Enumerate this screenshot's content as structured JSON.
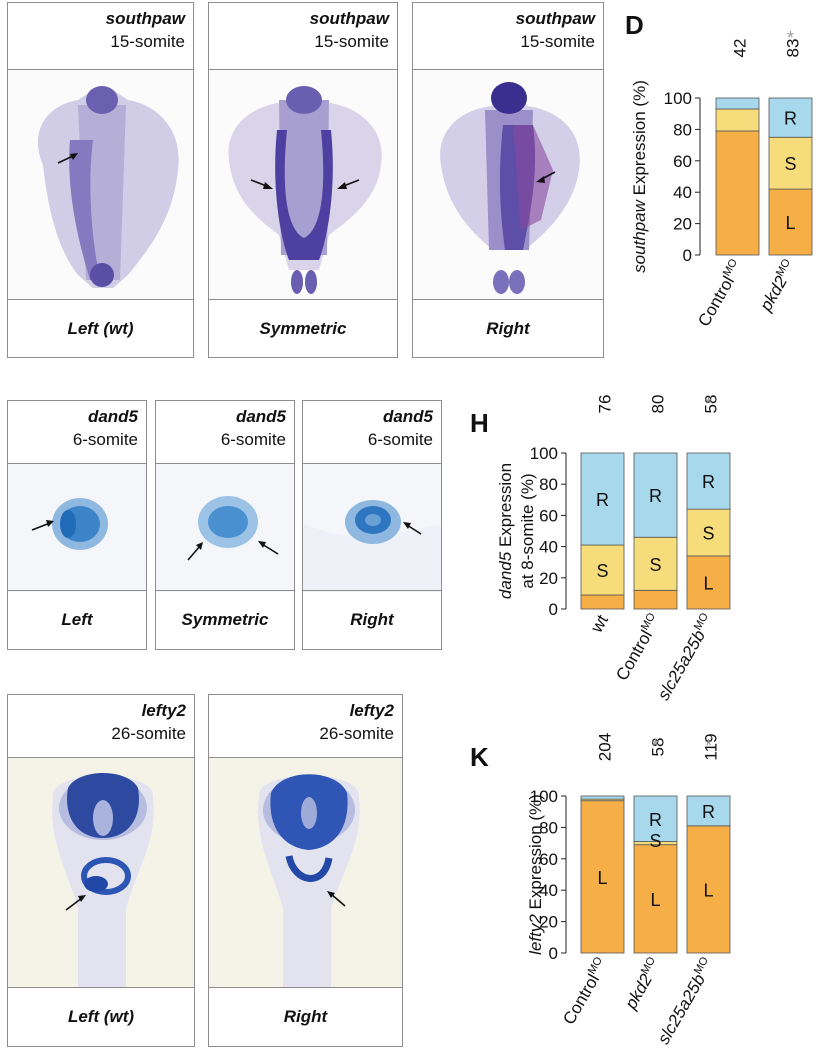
{
  "panels": [
    {
      "id": "A",
      "gene": "southpaw",
      "stage": "15-somite",
      "pattern": "Left (wt)"
    },
    {
      "id": "B",
      "gene": "southpaw",
      "stage": "15-somite",
      "pattern": "Symmetric"
    },
    {
      "id": "C",
      "gene": "southpaw",
      "stage": "15-somite",
      "pattern": "Right"
    },
    {
      "id": "E",
      "gene": "dand5",
      "stage": "6-somite",
      "pattern": "Left"
    },
    {
      "id": "F",
      "gene": "dand5",
      "stage": "6-somite",
      "pattern": "Symmetric"
    },
    {
      "id": "G",
      "gene": "dand5",
      "stage": "6-somite",
      "pattern": "Right"
    },
    {
      "id": "I",
      "gene": "lefty2",
      "stage": "26-somite",
      "pattern": "Left (wt)"
    },
    {
      "id": "J",
      "gene": "lefty2",
      "stage": "26-somite",
      "pattern": "Right"
    }
  ],
  "colors": {
    "L": "#f6ae47",
    "S": "#f6dc7a",
    "R": "#a8d8ec",
    "star": "#999999"
  },
  "chart_data": [
    {
      "id": "D",
      "type": "bar",
      "stacked": true,
      "ylabel_gene": "southpaw",
      "ylabel_rest": " Expression (%)",
      "ylabel_line2": "",
      "ylim": [
        0,
        100
      ],
      "yticks": [
        0,
        20,
        40,
        60,
        80,
        100
      ],
      "categories": [
        {
          "base": "Control",
          "sup": "MO",
          "italic": false
        },
        {
          "base": "pkd2",
          "sup": "MO",
          "italic": true
        }
      ],
      "n": [
        "42",
        "83"
      ],
      "significant": [
        false,
        true
      ],
      "series": [
        {
          "name": "L",
          "values": [
            79,
            42
          ]
        },
        {
          "name": "S",
          "values": [
            14,
            33
          ]
        },
        {
          "name": "R",
          "values": [
            7,
            25
          ]
        }
      ],
      "seg_labels": [
        [
          "",
          "",
          ""
        ],
        [
          "L",
          "S",
          "R"
        ]
      ],
      "overlap_labels": []
    },
    {
      "id": "H",
      "type": "bar",
      "stacked": true,
      "ylabel_gene": "dand5",
      "ylabel_rest": " Expression",
      "ylabel_line2": "at 8-somite (%)",
      "ylim": [
        0,
        100
      ],
      "yticks": [
        0,
        20,
        40,
        60,
        80,
        100
      ],
      "categories": [
        {
          "base": "wt",
          "sup": "",
          "italic": false
        },
        {
          "base": "Control",
          "sup": "MO",
          "italic": false
        },
        {
          "base": "slc25a25b",
          "sup": "MO",
          "italic": true
        }
      ],
      "n": [
        "76",
        "80",
        "58"
      ],
      "significant": [
        false,
        false,
        true
      ],
      "series": [
        {
          "name": "L",
          "values": [
            9,
            12,
            34
          ]
        },
        {
          "name": "S",
          "values": [
            32,
            34,
            30
          ]
        },
        {
          "name": "R",
          "values": [
            59,
            54,
            36
          ]
        }
      ],
      "seg_labels": [
        [
          "",
          "S",
          "R"
        ],
        [
          "",
          "S",
          "R"
        ],
        [
          "L",
          "S",
          "R"
        ]
      ],
      "overlap_labels": []
    },
    {
      "id": "K",
      "type": "bar",
      "stacked": true,
      "ylabel_gene": "lefty2",
      "ylabel_rest": " Expression (%)",
      "ylabel_line2": "",
      "ylim": [
        0,
        100
      ],
      "yticks": [
        0,
        20,
        40,
        60,
        80,
        100
      ],
      "categories": [
        {
          "base": "Control",
          "sup": "MO",
          "italic": false
        },
        {
          "base": "pkd2",
          "sup": "MO",
          "italic": true
        },
        {
          "base": "slc25a25b",
          "sup": "MO",
          "italic": true
        }
      ],
      "n": [
        "204",
        "58",
        "119"
      ],
      "significant": [
        false,
        true,
        true
      ],
      "series": [
        {
          "name": "L",
          "values": [
            97,
            69,
            81
          ]
        },
        {
          "name": "S",
          "values": [
            1,
            2,
            0
          ]
        },
        {
          "name": "R",
          "values": [
            2,
            29,
            19
          ]
        }
      ],
      "seg_labels": [
        [
          "L",
          "",
          ""
        ],
        [
          "L",
          "",
          "R"
        ],
        [
          "L",
          "",
          "R"
        ]
      ],
      "overlap_labels": [
        {
          "bar": 1,
          "text": "S",
          "value": 72
        }
      ]
    }
  ]
}
